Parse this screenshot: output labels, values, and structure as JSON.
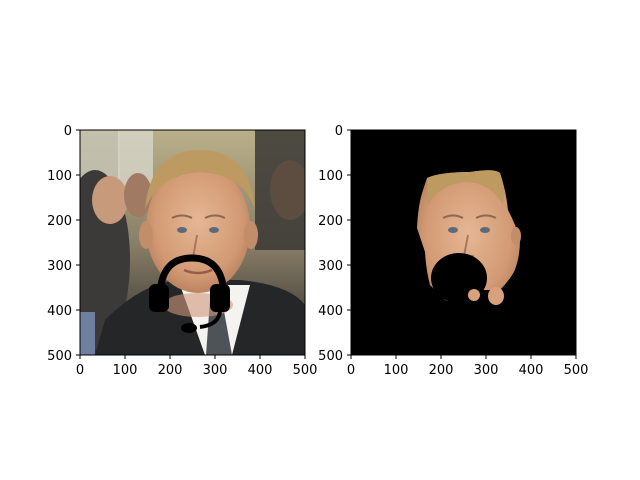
{
  "chart_data": [
    {
      "type": "image",
      "panel": "left",
      "content": "face-photo-with-headset-icon",
      "xlim": [
        0,
        500
      ],
      "ylim": [
        500,
        0
      ],
      "xticks": [
        "0",
        "100",
        "200",
        "300",
        "400",
        "500"
      ],
      "yticks": [
        "0",
        "100",
        "200",
        "300",
        "400",
        "500"
      ]
    },
    {
      "type": "image",
      "panel": "right",
      "content": "segmented-face-on-black-background",
      "xlim": [
        0,
        500
      ],
      "ylim": [
        500,
        0
      ],
      "xticks": [
        "0",
        "100",
        "200",
        "300",
        "400",
        "500"
      ],
      "yticks": [
        "0",
        "100",
        "200",
        "300",
        "400",
        "500"
      ]
    }
  ],
  "colors": {
    "background": "#ffffff",
    "axis": "#000000",
    "mask": "#000000",
    "skin": "#d8a17c",
    "hair": "#bd9a62",
    "suit": "#252628",
    "shirt": "#f4f3f0",
    "tie": "#4d5357"
  }
}
